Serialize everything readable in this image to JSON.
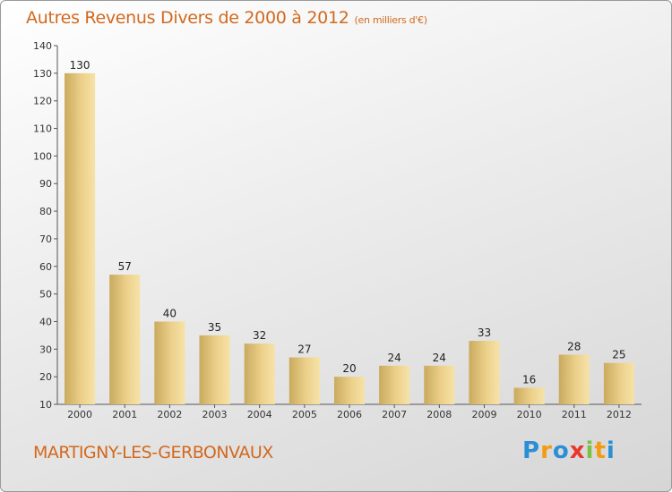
{
  "chart_data": {
    "type": "bar",
    "title": "Autres Revenus Divers de 2000 à 2012",
    "unit": "(en milliers d'€)",
    "categories": [
      "2000",
      "2001",
      "2002",
      "2003",
      "2004",
      "2005",
      "2006",
      "2007",
      "2008",
      "2009",
      "2010",
      "2011",
      "2012"
    ],
    "values": [
      130,
      57,
      40,
      35,
      32,
      27,
      20,
      24,
      24,
      33,
      16,
      28,
      25
    ],
    "ylim": [
      10,
      140
    ],
    "yticks": [
      10,
      20,
      30,
      40,
      50,
      60,
      70,
      80,
      90,
      100,
      110,
      120,
      130,
      140
    ],
    "grid": false,
    "bar_color": "#e8c878"
  },
  "commune": "MARTIGNY-LES-GERBONVAUX",
  "logo": {
    "letters": [
      "P",
      "r",
      "o",
      "x",
      "i",
      "t",
      "i"
    ],
    "colors": [
      "#2b8fd6",
      "#f39c12",
      "#2b8fd6",
      "#e8382e",
      "#7cc242",
      "#f39c12",
      "#2b8fd6"
    ]
  }
}
